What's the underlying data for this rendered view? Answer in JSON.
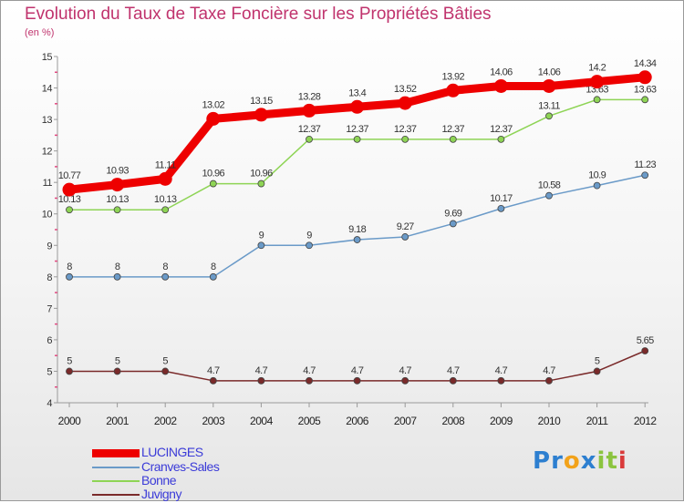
{
  "chart_data": {
    "type": "line",
    "title": "Evolution du Taux de Taxe Foncière sur les Propriétés Bâties",
    "subtitle": "(en %)",
    "x": [
      "2000",
      "2001",
      "2002",
      "2003",
      "2004",
      "2005",
      "2006",
      "2007",
      "2008",
      "2009",
      "2010",
      "2011",
      "2012"
    ],
    "ylim": [
      4,
      15
    ],
    "yticks": [
      "4",
      "5",
      "6",
      "7",
      "8",
      "9",
      "10",
      "11",
      "12",
      "13",
      "14",
      "15"
    ],
    "grid": "none",
    "legend_placement": "bottom-left",
    "series": [
      {
        "name": "LUCINGES",
        "color": "#ee0000",
        "emphasis": true,
        "values": [
          10.77,
          10.93,
          11.11,
          13.02,
          13.15,
          13.28,
          13.4,
          13.52,
          13.92,
          14.06,
          14.06,
          14.2,
          14.34
        ],
        "labels": [
          "10.77",
          "10.93",
          "11.11",
          "13.02",
          "13.15",
          "13.28",
          "13.4",
          "13.52",
          "13.92",
          "14.06",
          "14.06",
          "14.2",
          "14.34"
        ]
      },
      {
        "name": "Cranves-Sales",
        "color": "#6a9ac8",
        "values": [
          8,
          8,
          8,
          8,
          9,
          9,
          9.18,
          9.27,
          9.69,
          10.17,
          10.58,
          10.9,
          11.23
        ],
        "labels": [
          "8",
          "8",
          "8",
          "8",
          "9",
          "9",
          "9.18",
          "9.27",
          "9.69",
          "10.17",
          "10.58",
          "10.9",
          "11.23"
        ]
      },
      {
        "name": "Bonne",
        "color": "#8ed455",
        "values": [
          10.13,
          10.13,
          10.13,
          10.96,
          10.96,
          12.37,
          12.37,
          12.37,
          12.37,
          12.37,
          13.11,
          13.63,
          13.63
        ],
        "labels": [
          "10.13",
          "10.13",
          "10.13",
          "10.96",
          "10.96",
          "12.37",
          "12.37",
          "12.37",
          "12.37",
          "12.37",
          "13.11",
          "13.63",
          "13.63"
        ]
      },
      {
        "name": "Juvigny",
        "color": "#7a2a2a",
        "values": [
          5,
          5,
          5,
          4.7,
          4.7,
          4.7,
          4.7,
          4.7,
          4.7,
          4.7,
          4.7,
          5,
          5.65
        ],
        "labels": [
          "5",
          "5",
          "5",
          "4.7",
          "4.7",
          "4.7",
          "4.7",
          "4.7",
          "4.7",
          "4.7",
          "4.7",
          "5",
          "5.65"
        ]
      }
    ]
  },
  "logo": {
    "letters": [
      {
        "char": "P",
        "color": "#2d7fd0"
      },
      {
        "char": "r",
        "color": "#2d7fd0"
      },
      {
        "char": "o",
        "color": "#f2a21a"
      },
      {
        "char": "x",
        "color": "#2d7fd0"
      },
      {
        "char": "i",
        "color": "#8bc43f"
      },
      {
        "char": "t",
        "color": "#8bc43f"
      },
      {
        "char": "i",
        "color": "#d93a3a"
      }
    ]
  }
}
